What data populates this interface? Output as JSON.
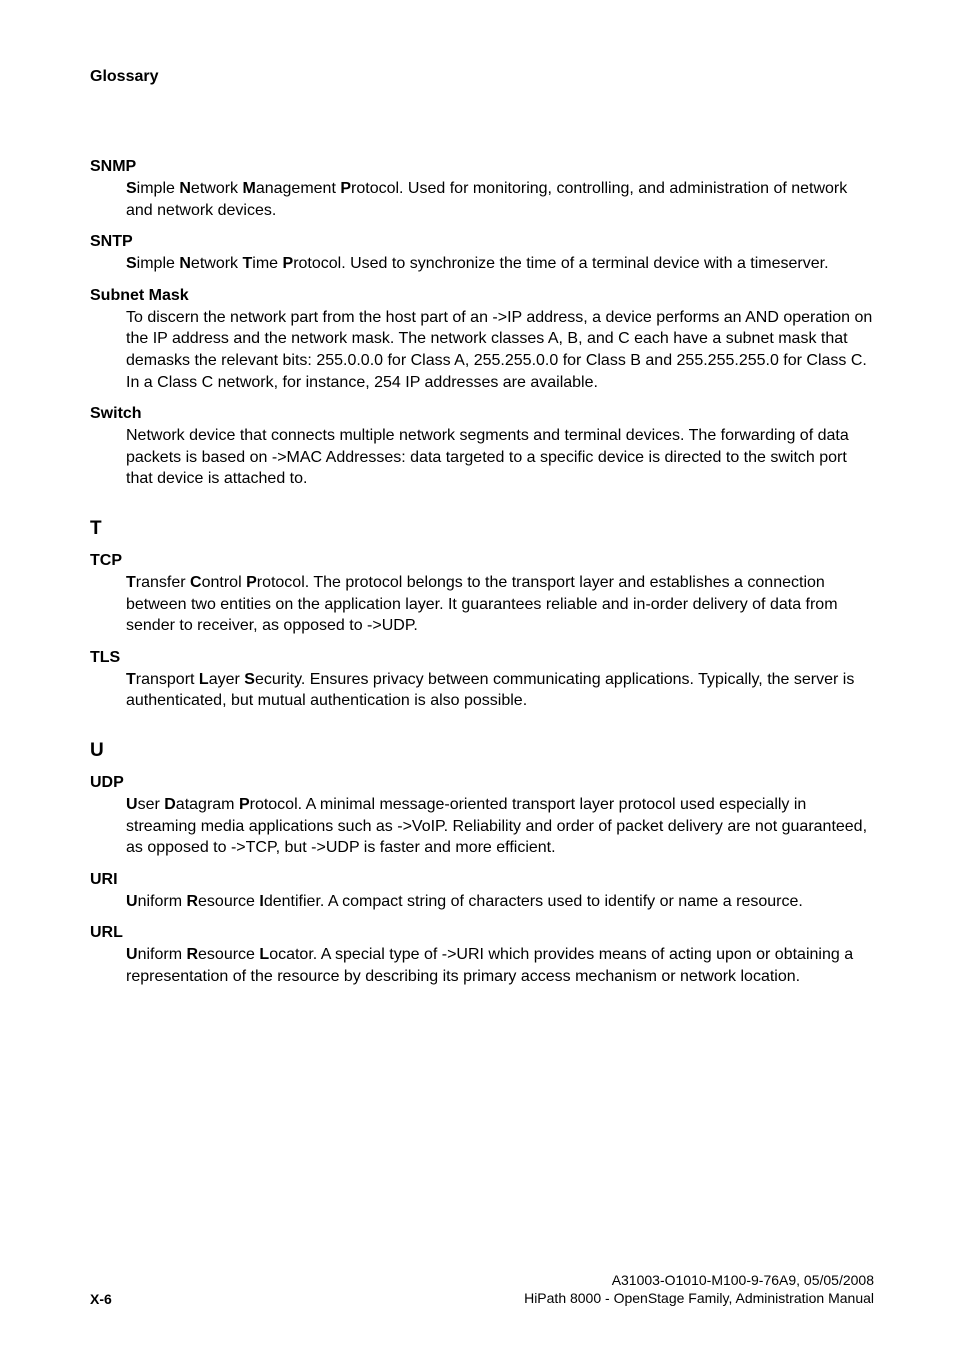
{
  "header": {
    "title": "Glossary"
  },
  "entries": [
    {
      "term": "SNMP",
      "def_parts": [
        {
          "bold": true,
          "text": "S"
        },
        {
          "bold": false,
          "text": "imple "
        },
        {
          "bold": true,
          "text": "N"
        },
        {
          "bold": false,
          "text": "etwork "
        },
        {
          "bold": true,
          "text": "M"
        },
        {
          "bold": false,
          "text": "anagement "
        },
        {
          "bold": true,
          "text": "P"
        },
        {
          "bold": false,
          "text": "rotocol. Used for monitoring, controlling, and administration of network and network devices."
        }
      ]
    },
    {
      "term": "SNTP",
      "def_parts": [
        {
          "bold": true,
          "text": "S"
        },
        {
          "bold": false,
          "text": "imple "
        },
        {
          "bold": true,
          "text": "N"
        },
        {
          "bold": false,
          "text": "etwork "
        },
        {
          "bold": true,
          "text": "T"
        },
        {
          "bold": false,
          "text": "ime "
        },
        {
          "bold": true,
          "text": "P"
        },
        {
          "bold": false,
          "text": "rotocol. Used to synchronize the time of a terminal device with a timeserver."
        }
      ]
    },
    {
      "term": "Subnet Mask",
      "def_parts": [
        {
          "bold": false,
          "text": "To discern the network part from the host part of an ->IP address, a device performs an AND operation on the IP address and the network mask. The network classes A, B, and C each have a subnet mask that demasks the relevant bits: 255.0.0.0 for Class A, 255.255.0.0 for Class B and 255.255.255.0 for Class C. In a Class C network, for instance, 254 IP addresses are available."
        }
      ]
    },
    {
      "term": "Switch",
      "def_parts": [
        {
          "bold": false,
          "text": "Network device that connects multiple network segments and terminal devices. The forwarding of data packets is based on ->MAC Addresses: data targeted to a specific device is directed to the switch port that device is attached to."
        }
      ]
    }
  ],
  "section_t": {
    "letter": "T",
    "entries": [
      {
        "term": "TCP",
        "def_parts": [
          {
            "bold": true,
            "text": "T"
          },
          {
            "bold": false,
            "text": "ransfer "
          },
          {
            "bold": true,
            "text": "C"
          },
          {
            "bold": false,
            "text": "ontrol "
          },
          {
            "bold": true,
            "text": "P"
          },
          {
            "bold": false,
            "text": "rotocol. The protocol belongs to the transport layer and establishes a connection between two entities on the application layer. It guarantees reliable and in-order delivery of data from sender to receiver, as opposed to ->UDP."
          }
        ]
      },
      {
        "term": "TLS",
        "def_parts": [
          {
            "bold": true,
            "text": "T"
          },
          {
            "bold": false,
            "text": "ransport "
          },
          {
            "bold": true,
            "text": "L"
          },
          {
            "bold": false,
            "text": "ayer "
          },
          {
            "bold": true,
            "text": "S"
          },
          {
            "bold": false,
            "text": "ecurity. Ensures privacy between communicating applications. Typically, the server is authenticated, but mutual authentication is also possible."
          }
        ]
      }
    ]
  },
  "section_u": {
    "letter": "U",
    "entries": [
      {
        "term": "UDP",
        "def_parts": [
          {
            "bold": true,
            "text": "U"
          },
          {
            "bold": false,
            "text": "ser "
          },
          {
            "bold": true,
            "text": "D"
          },
          {
            "bold": false,
            "text": "atagram "
          },
          {
            "bold": true,
            "text": "P"
          },
          {
            "bold": false,
            "text": "rotocol. A minimal message-oriented transport layer protocol used especially in streaming media applications such as ->VoIP. Reliability and order of packet delivery are not guaranteed, as opposed to ->TCP, but ->UDP is faster and more efficient."
          }
        ]
      },
      {
        "term": "URI",
        "def_parts": [
          {
            "bold": true,
            "text": "U"
          },
          {
            "bold": false,
            "text": "niform "
          },
          {
            "bold": true,
            "text": "R"
          },
          {
            "bold": false,
            "text": "esource "
          },
          {
            "bold": true,
            "text": "I"
          },
          {
            "bold": false,
            "text": "dentifier. A compact string of characters used to identify or name a resource."
          }
        ]
      },
      {
        "term": "URL",
        "def_parts": [
          {
            "bold": true,
            "text": "U"
          },
          {
            "bold": false,
            "text": "niform "
          },
          {
            "bold": true,
            "text": "R"
          },
          {
            "bold": false,
            "text": "esource "
          },
          {
            "bold": true,
            "text": "L"
          },
          {
            "bold": false,
            "text": "ocator. A special type of ->URI which provides means of acting upon or obtaining a representation of the resource by describing its primary access mechanism or network location."
          }
        ]
      }
    ]
  },
  "footer": {
    "page_number": "X-6",
    "doc_id": "A31003-O1010-M100-9-76A9, 05/05/2008",
    "manual_title": "HiPath 8000 - OpenStage Family, Administration Manual"
  }
}
